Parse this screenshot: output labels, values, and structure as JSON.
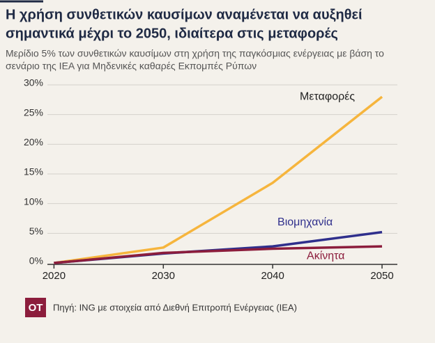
{
  "chart_data": {
    "type": "line",
    "title": "Η χρήση συνθετικών καυσίμων αναμένεται να αυξηθεί σημαντικά μέχρι το 2050, ιδιαίτερα στις μεταφορές",
    "subtitle": "Μερίδιο 5% των συνθετικών καυσίμων στη χρήση της παγκόσμιας ενέργειας με βάση το σενάριο της IEA για Μηδενικές καθαρές Εκπομπές Ρύπων",
    "x": [
      2020,
      2030,
      2040,
      2050
    ],
    "xlim": [
      2019.4,
      2051.4
    ],
    "xticks": [
      2020,
      2030,
      2040,
      2050
    ],
    "ylim": [
      0,
      30
    ],
    "yticks": [
      {
        "value": 0,
        "label": "0%"
      },
      {
        "value": 5,
        "label": "5%"
      },
      {
        "value": 10,
        "label": "10%"
      },
      {
        "value": 15,
        "label": "15%"
      },
      {
        "value": 20,
        "label": "20%"
      },
      {
        "value": 25,
        "label": "25%"
      },
      {
        "value": 30,
        "label": "30%"
      }
    ],
    "grid": true,
    "series": [
      {
        "name": "Μεταφορές",
        "color": "#f6b53d",
        "values": [
          0,
          2.6,
          13.5,
          28
        ]
      },
      {
        "name": "Βιομηχανία",
        "color": "#2f2f8c",
        "values": [
          0,
          1.6,
          2.8,
          5.2
        ]
      },
      {
        "name": "Ακίνητα",
        "color": "#8c1d3c",
        "values": [
          0,
          1.7,
          2.4,
          2.8
        ]
      }
    ],
    "logo": "OT",
    "source": "Πηγή: ING με στοιχεία από Διεθνή Επιτροπή Ενέργειας (IEA)"
  }
}
